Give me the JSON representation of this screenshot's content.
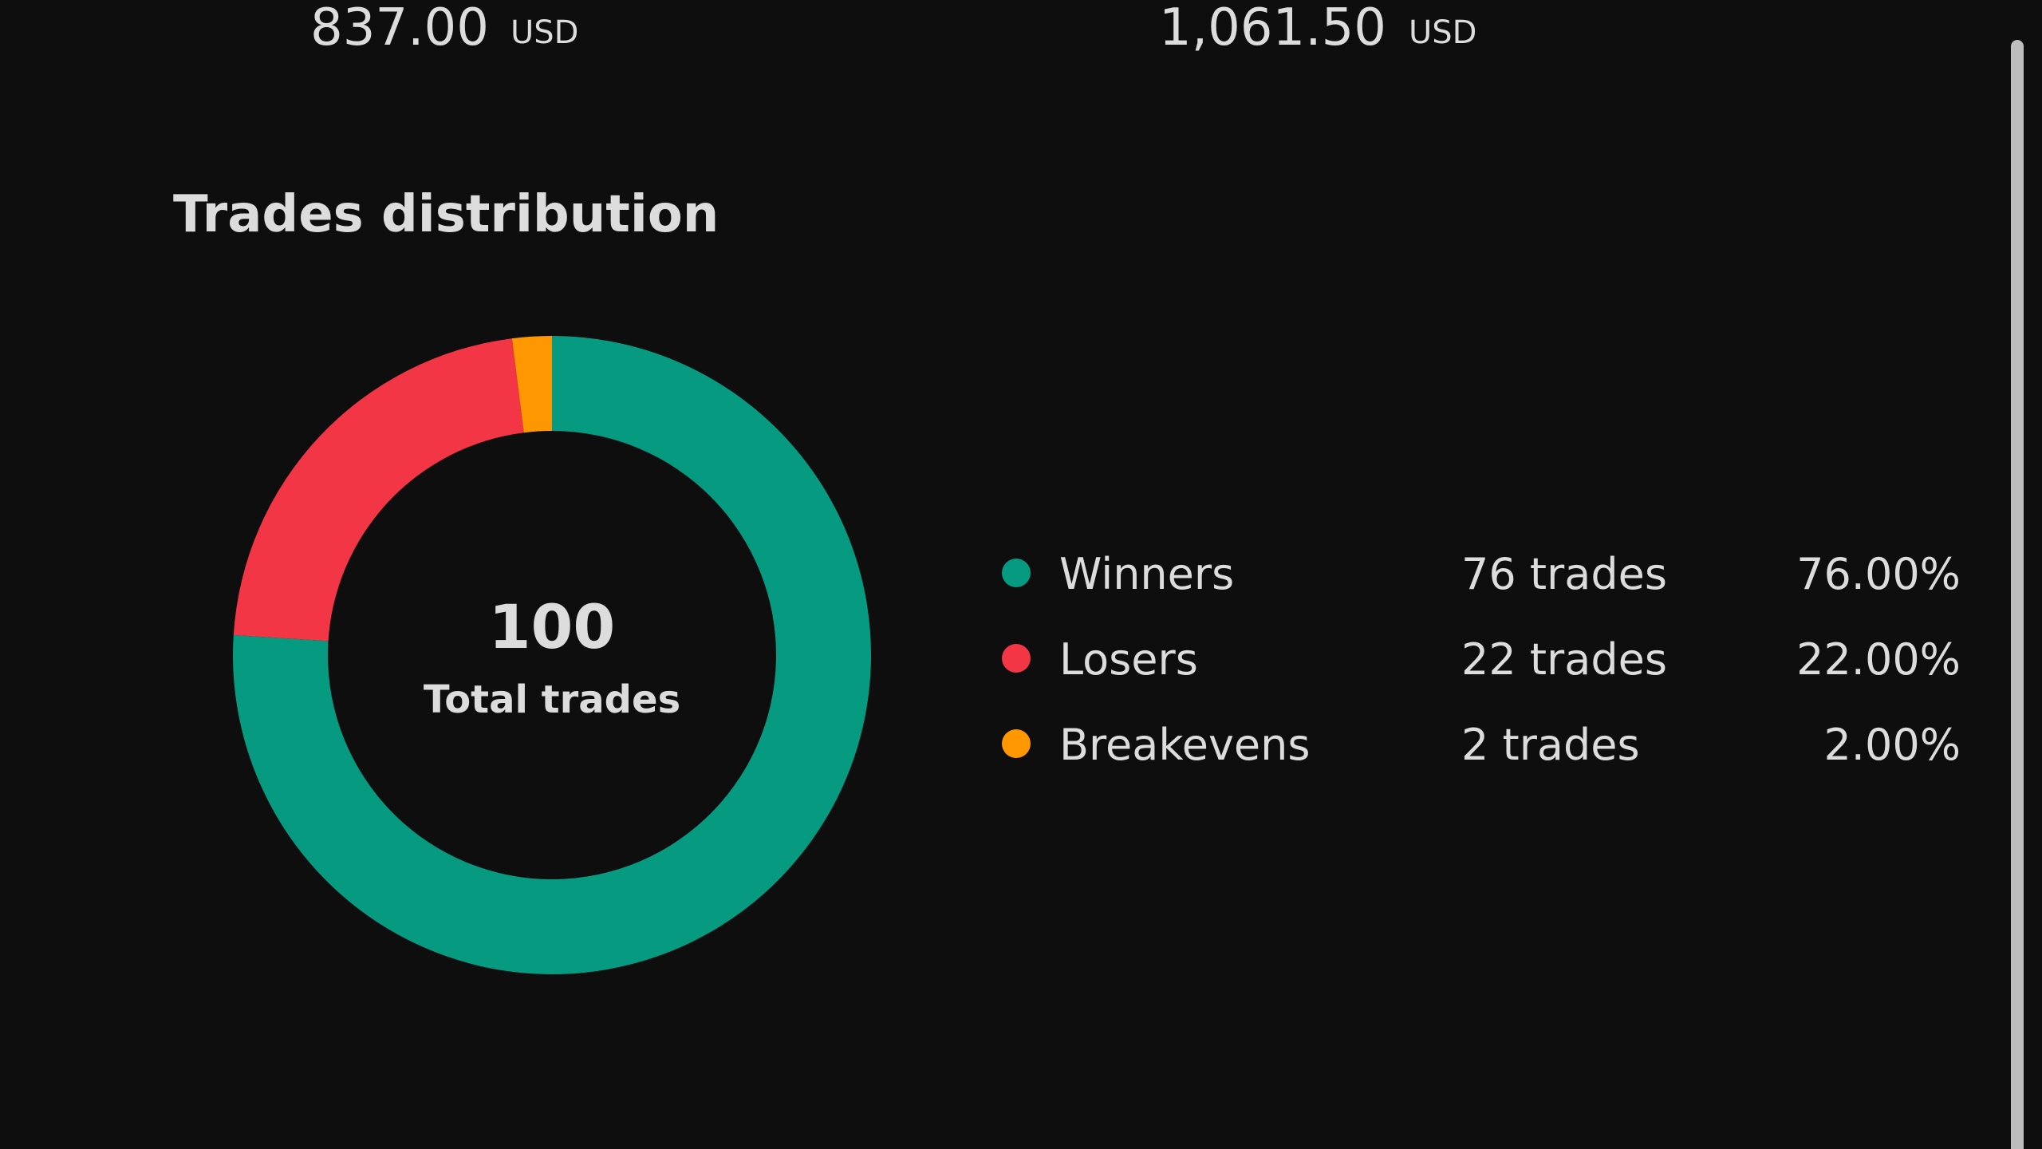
{
  "stats": [
    {
      "value": "837.00",
      "unit": "USD"
    },
    {
      "value": "1,061.50",
      "unit": "USD"
    }
  ],
  "chart_data": {
    "type": "donut",
    "title": "Trades distribution",
    "total": 100,
    "total_label": "Total trades",
    "categories": [
      "Winners",
      "Losers",
      "Breakevens"
    ],
    "values": [
      76,
      22,
      2
    ],
    "value_labels": [
      "76 trades",
      "22 trades",
      "2 trades"
    ],
    "percent_labels": [
      "76.00%",
      "22.00%",
      "2.00%"
    ],
    "colors": [
      "#069a80",
      "#f23645",
      "#ff9800"
    ]
  }
}
